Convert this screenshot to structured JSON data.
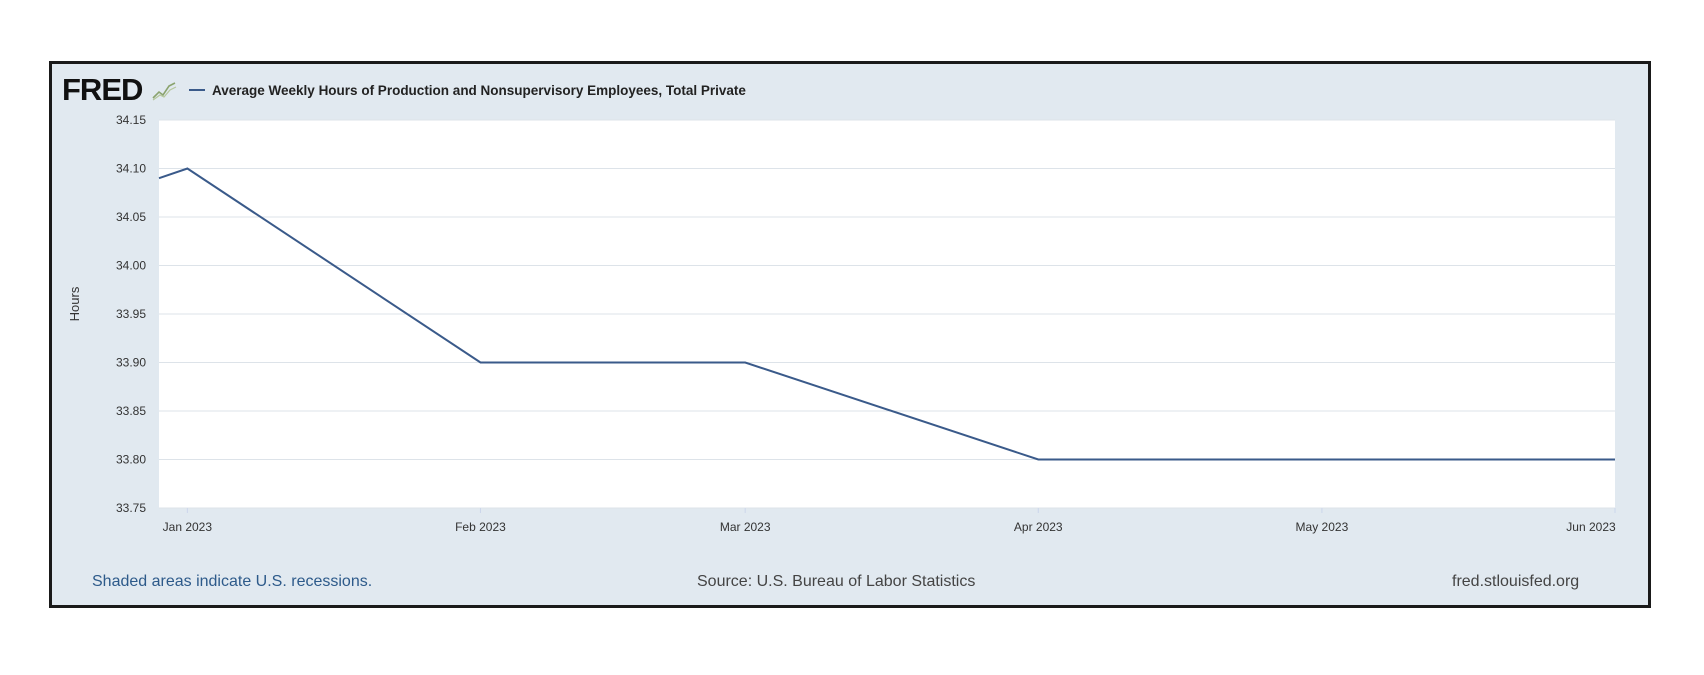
{
  "logo": {
    "text": "FRED"
  },
  "legend": {
    "series_label": "Average Weekly Hours of Production and Nonsupervisory Employees, Total Private"
  },
  "footer": {
    "recessions_note": "Shaded areas indicate U.S. recessions.",
    "source": "Source: U.S. Bureau of Labor Statistics",
    "site": "fred.stlouisfed.org"
  },
  "colors": {
    "series_line": "#3a5a8a",
    "panel_background": "#e1e9f0",
    "plot_background": "#ffffff",
    "gridline": "#dde3e9",
    "footer_link": "#2d5a8a",
    "footer_text": "#444444"
  },
  "chart_data": {
    "type": "line",
    "title": "",
    "xlabel": "",
    "ylabel": "Hours",
    "ylim": [
      33.75,
      34.15
    ],
    "yticks": [
      "34.15",
      "34.10",
      "34.05",
      "34.00",
      "33.95",
      "33.90",
      "33.85",
      "33.80",
      "33.75"
    ],
    "x_ticks": [
      "Jan 2023",
      "Feb 2023",
      "Mar 2023",
      "Apr 2023",
      "May 2023",
      "Jun 2023"
    ],
    "grid": true,
    "legend_position": "top-left",
    "series": [
      {
        "name": "Average Weekly Hours of Production and Nonsupervisory Employees, Total Private",
        "x": [
          "2022-12-29",
          "2023-01-01",
          "2023-02-01",
          "2023-03-01",
          "2023-04-01",
          "2023-05-01",
          "2023-06-01"
        ],
        "values": [
          34.09,
          34.1,
          33.9,
          33.9,
          33.8,
          33.8,
          33.8
        ]
      }
    ]
  }
}
